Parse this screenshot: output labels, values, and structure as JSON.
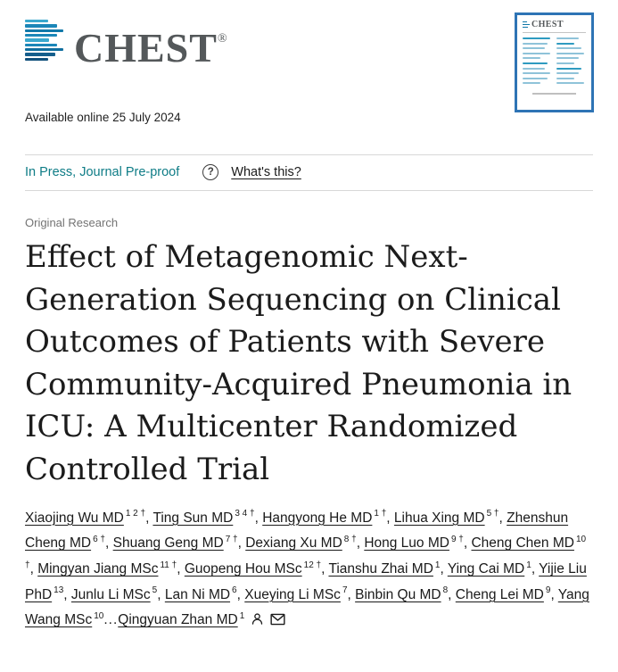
{
  "colors": {
    "brand_teal": "#1179A9",
    "in_press_teal": "#0E7C86",
    "cover_border_blue": "#2E74B5",
    "logo_gray": "#54585A",
    "text_dark": "#1A1A1A",
    "muted_gray": "#737373"
  },
  "header": {
    "logo_text": "CHEST",
    "logo_registered": "®",
    "available_online": "Available online 25 July 2024"
  },
  "status_bar": {
    "in_press_label": "In Press, Journal Pre-proof",
    "help_icon_glyph": "?",
    "whats_this_label": "What's this?"
  },
  "cover_thumbnail": {
    "logo_text": "CHEST"
  },
  "article": {
    "category": "Original Research",
    "title": "Effect of Metagenomic Next-Generation Sequencing on Clinical Outcomes of Patients with Severe Community-Acquired Pneumonia in ICU: A Multicenter Randomized Controlled Trial",
    "authors": [
      {
        "name": "Xiaojing Wu",
        "degree": "MD",
        "sup": "1 2 †",
        "sep": ", "
      },
      {
        "name": "Ting Sun",
        "degree": "MD",
        "sup": "3 4 †",
        "sep": ", "
      },
      {
        "name": "Hangyong He",
        "degree": "MD",
        "sup": "1 †",
        "sep": ", "
      },
      {
        "name": "Lihua Xing",
        "degree": "MD",
        "sup": "5 †",
        "sep": ", "
      },
      {
        "name": "Zhenshun Cheng",
        "degree": "MD",
        "sup": "6 †",
        "sep": ", "
      },
      {
        "name": "Shuang Geng",
        "degree": "MD",
        "sup": "7 †",
        "sep": ", "
      },
      {
        "name": "Dexiang Xu",
        "degree": "MD",
        "sup": "8 †",
        "sep": ", "
      },
      {
        "name": "Hong Luo",
        "degree": "MD",
        "sup": "9 †",
        "sep": ", "
      },
      {
        "name": "Cheng Chen",
        "degree": "MD",
        "sup": "10 †",
        "sep": ", "
      },
      {
        "name": "Mingyan Jiang",
        "degree": "MSc",
        "sup": "11 †",
        "sep": ", "
      },
      {
        "name": "Guopeng Hou",
        "degree": "MSc",
        "sup": "12 †",
        "sep": ", "
      },
      {
        "name": "Tianshu Zhai",
        "degree": "MD",
        "sup": "1",
        "sep": ", "
      },
      {
        "name": "Ying Cai",
        "degree": "MD",
        "sup": "1",
        "sep": ", "
      },
      {
        "name": "Yijie Liu",
        "degree": "PhD",
        "sup": "13",
        "sep": ", "
      },
      {
        "name": "Junlu Li",
        "degree": "MSc",
        "sup": "5",
        "sep": ", "
      },
      {
        "name": "Lan Ni",
        "degree": "MD",
        "sup": "6",
        "sep": ", "
      },
      {
        "name": "Xueying Li",
        "degree": "MSc",
        "sup": "7",
        "sep": ", "
      },
      {
        "name": "Binbin Qu",
        "degree": "MD",
        "sup": "8",
        "sep": ", "
      },
      {
        "name": "Cheng Lei",
        "degree": "MD",
        "sup": "9",
        "sep": ", "
      },
      {
        "name": "Yang Wang",
        "degree": "MSc",
        "sup": "10",
        "sep": "..."
      },
      {
        "name": "Qingyuan Zhan",
        "degree": "MD",
        "sup": "1",
        "sep": ""
      }
    ],
    "corresponding_icons": [
      "person-icon",
      "envelope-icon"
    ]
  }
}
